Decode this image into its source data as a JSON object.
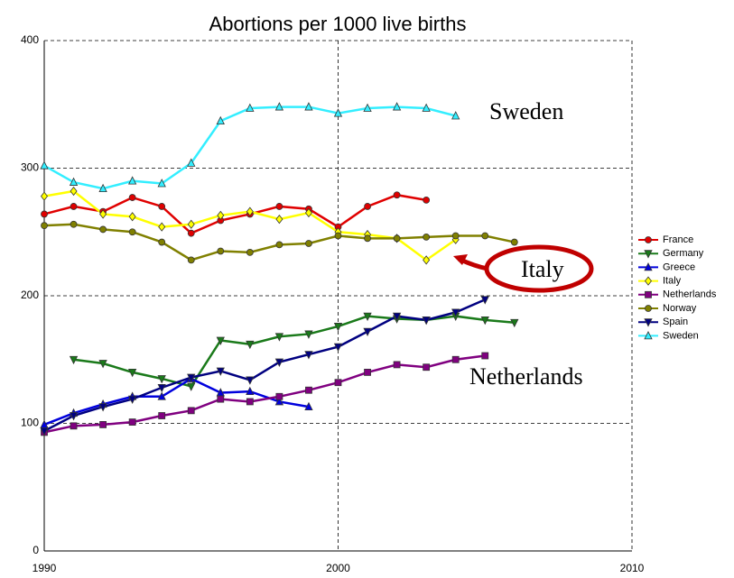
{
  "chart_data": {
    "type": "line",
    "title": "Abortions per 1000 live births",
    "x": [
      1990,
      1991,
      1992,
      1993,
      1994,
      1995,
      1996,
      1997,
      1998,
      1999,
      2000,
      2001,
      2002,
      2003,
      2004,
      2005,
      2006
    ],
    "xlim": [
      1990,
      2010
    ],
    "xticks": [
      1990,
      2000,
      2010
    ],
    "ylim": [
      0,
      400
    ],
    "yticks": [
      0,
      100,
      200,
      300,
      400
    ],
    "grid": true,
    "legend": "right",
    "series": [
      {
        "name": "France",
        "color": "#e00000",
        "marker": "circle",
        "values": [
          264,
          270,
          266,
          277,
          270,
          249,
          259,
          264,
          270,
          268,
          254,
          270,
          279,
          275,
          null,
          null,
          null
        ]
      },
      {
        "name": "Germany",
        "color": "#1a7a1a",
        "marker": "triangle-down",
        "values": [
          null,
          150,
          147,
          140,
          135,
          129,
          165,
          162,
          168,
          170,
          176,
          184,
          182,
          181,
          184,
          181,
          179
        ]
      },
      {
        "name": "Greece",
        "color": "#0000dd",
        "marker": "triangle-up",
        "values": [
          99,
          108,
          115,
          121,
          121,
          135,
          124,
          125,
          117,
          113,
          null,
          null,
          null,
          null,
          null,
          null,
          null
        ]
      },
      {
        "name": "Italy",
        "color": "#ffff00",
        "marker": "diamond",
        "values": [
          278,
          282,
          264,
          262,
          254,
          256,
          263,
          266,
          260,
          265,
          250,
          248,
          245,
          228,
          244,
          null,
          null
        ]
      },
      {
        "name": "Netherlands",
        "color": "#800080",
        "marker": "square",
        "values": [
          93,
          98,
          99,
          101,
          106,
          110,
          119,
          117,
          121,
          126,
          132,
          140,
          146,
          144,
          150,
          153,
          null
        ]
      },
      {
        "name": "Norway",
        "color": "#808000",
        "marker": "circle",
        "values": [
          255,
          256,
          252,
          250,
          242,
          228,
          235,
          234,
          240,
          241,
          247,
          245,
          245,
          246,
          247,
          247,
          242
        ]
      },
      {
        "name": "Spain",
        "color": "#000080",
        "marker": "triangle-down",
        "values": [
          94,
          106,
          113,
          119,
          128,
          136,
          141,
          134,
          148,
          154,
          160,
          172,
          184,
          181,
          187,
          197,
          null
        ]
      },
      {
        "name": "Sweden",
        "color": "#33eeff",
        "marker": "triangle-up",
        "values": [
          302,
          289,
          284,
          290,
          288,
          304,
          337,
          347,
          348,
          348,
          343,
          347,
          348,
          347,
          341,
          null,
          null
        ]
      }
    ],
    "annotations": [
      "Sweden",
      "Italy",
      "Netherlands"
    ]
  }
}
